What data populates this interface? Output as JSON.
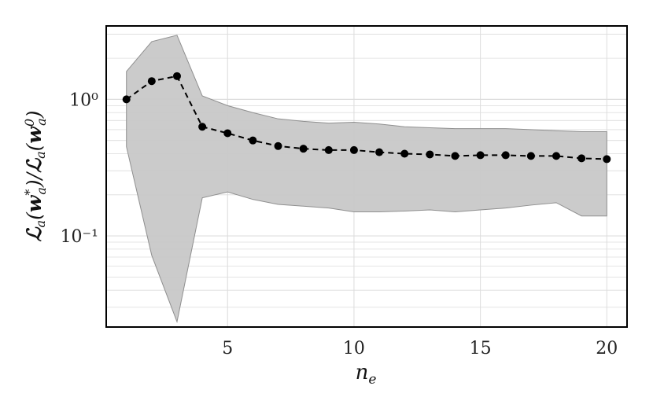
{
  "chart_data": {
    "type": "line",
    "xlabel": "n_e",
    "ylabel": "𝓛_a(w*_a)/𝓛_a(w⁰_a)",
    "xlim": [
      0.2,
      20.8
    ],
    "ylim": [
      0.0215,
      3.45
    ],
    "yscale": "log",
    "grid": true,
    "x_ticks": [
      5,
      10,
      15,
      20
    ],
    "y_ticks": [
      {
        "value": 1,
        "label": "10⁰"
      },
      {
        "value": 0.1,
        "label": "10⁻¹"
      }
    ],
    "series": [
      {
        "style": "dashed-line-with-markers",
        "x": [
          1,
          2,
          3,
          4,
          5,
          6,
          7,
          8,
          9,
          10,
          11,
          12,
          13,
          14,
          15,
          16,
          17,
          18,
          19,
          20
        ],
        "values": [
          1.0,
          1.36,
          1.48,
          0.63,
          0.565,
          0.5,
          0.455,
          0.435,
          0.425,
          0.425,
          0.41,
          0.4,
          0.395,
          0.385,
          0.39,
          0.39,
          0.385,
          0.385,
          0.37,
          0.365
        ]
      }
    ],
    "band": {
      "x": [
        1,
        2,
        3,
        4,
        5,
        6,
        7,
        8,
        9,
        10,
        11,
        12,
        13,
        14,
        15,
        16,
        17,
        18,
        19,
        20
      ],
      "upper": [
        1.6,
        2.65,
        2.95,
        1.06,
        0.9,
        0.8,
        0.72,
        0.69,
        0.67,
        0.68,
        0.66,
        0.63,
        0.62,
        0.61,
        0.61,
        0.61,
        0.6,
        0.59,
        0.58,
        0.58
      ],
      "lower": [
        0.45,
        0.072,
        0.0235,
        0.19,
        0.21,
        0.185,
        0.17,
        0.165,
        0.16,
        0.15,
        0.15,
        0.152,
        0.155,
        0.15,
        0.155,
        0.16,
        0.168,
        0.175,
        0.14,
        0.14
      ]
    },
    "colors": {
      "band_fill": "#c8c8c8",
      "band_edge": "#8f8f8f",
      "line": "#000000",
      "grid": "#dcdcdc",
      "frame": "#000000"
    }
  }
}
